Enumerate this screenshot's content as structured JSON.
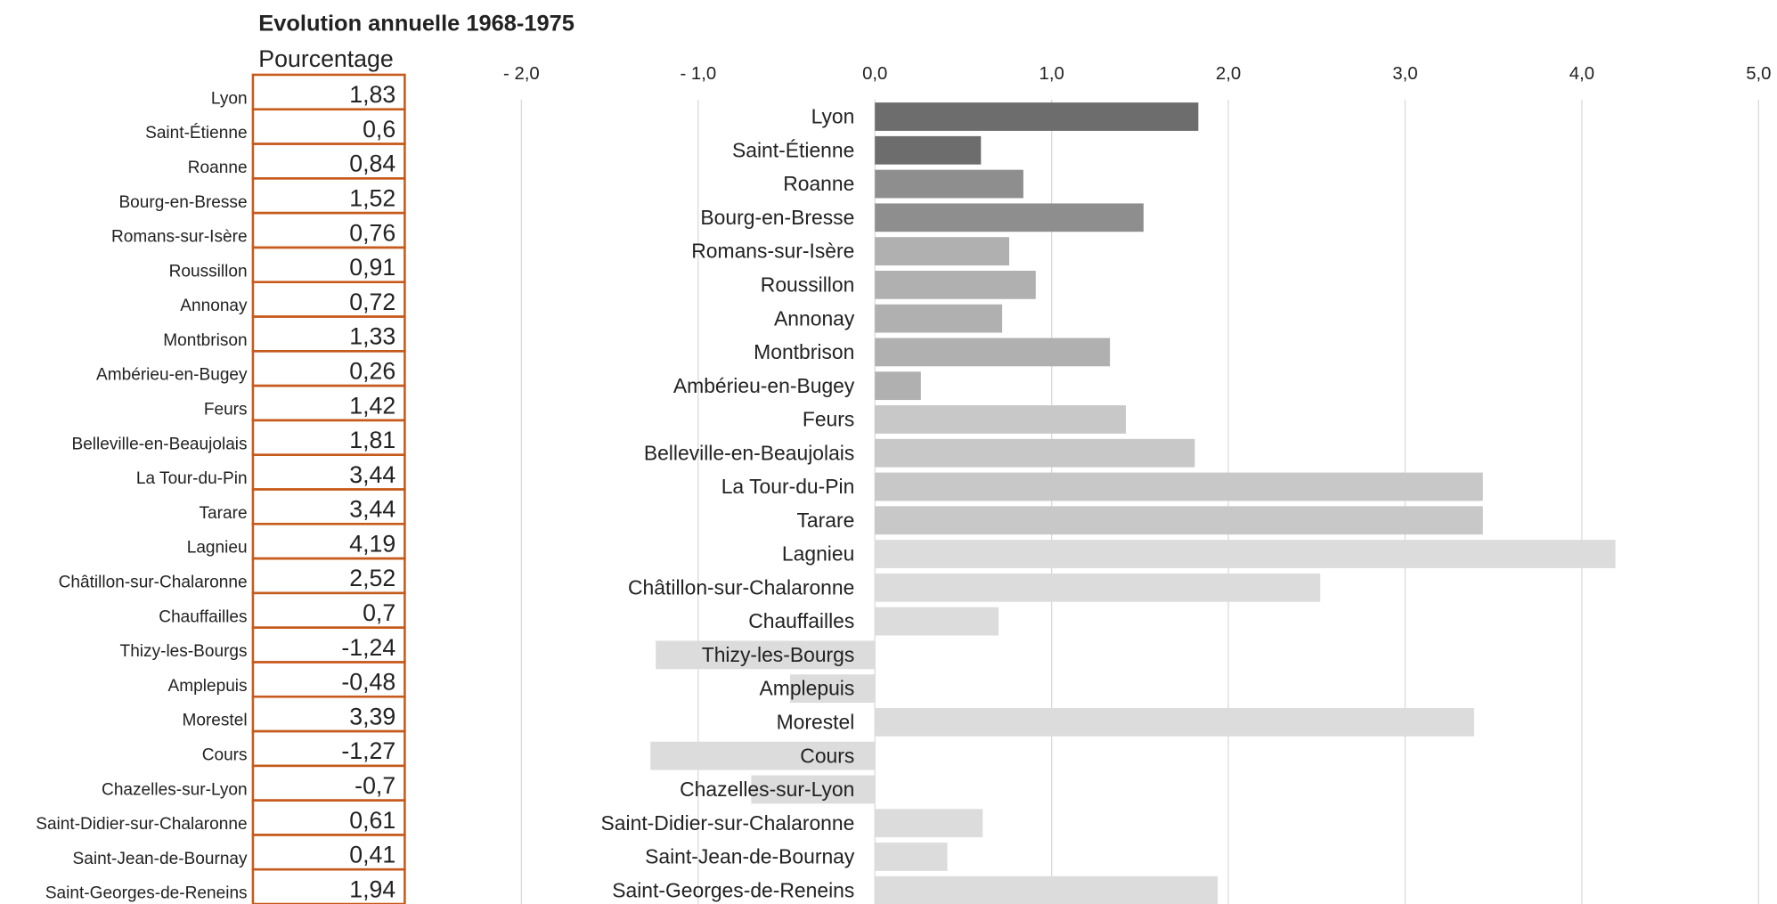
{
  "chart_data": {
    "type": "bar",
    "orientation": "horizontal",
    "title": "Evolution annuelle 1968-1975",
    "subtitle": "Pourcentage",
    "categories": [
      "Lyon",
      "Saint-Étienne",
      "Roanne",
      "Bourg-en-Bresse",
      "Romans-sur-Isère",
      "Roussillon",
      "Annonay",
      "Montbrison",
      "Ambérieu-en-Bugey",
      "Feurs",
      "Belleville-en-Beaujolais",
      "La Tour-du-Pin",
      "Tarare",
      "Lagnieu",
      "Châtillon-sur-Chalaronne",
      "Chauffailles",
      "Thizy-les-Bourgs",
      "Amplepuis",
      "Morestel",
      "Cours",
      "Chazelles-sur-Lyon",
      "Saint-Didier-sur-Chalaronne",
      "Saint-Jean-de-Bournay",
      "Saint-Georges-de-Reneins"
    ],
    "values": [
      1.83,
      0.6,
      0.84,
      1.52,
      0.76,
      0.91,
      0.72,
      1.33,
      0.26,
      1.42,
      1.81,
      3.44,
      3.44,
      4.19,
      2.52,
      0.7,
      -1.24,
      -0.48,
      3.39,
      -1.27,
      -0.7,
      0.61,
      0.41,
      1.94
    ],
    "value_labels": [
      "1,83",
      "0,6",
      "0,84",
      "1,52",
      "0,76",
      "0,91",
      "0,72",
      "1,33",
      "0,26",
      "1,42",
      "1,81",
      "3,44",
      "3,44",
      "4,19",
      "2,52",
      "0,7",
      "-1,24",
      "-0,48",
      "3,39",
      "-1,27",
      "-0,7",
      "0,61",
      "0,41",
      "1,94"
    ],
    "colors": [
      "#6e6d6d",
      "#6e6d6d",
      "#8e8e8e",
      "#8e8e8e",
      "#b0b0b0",
      "#b0b0b0",
      "#b0b0b0",
      "#b0b0b0",
      "#b0b0b0",
      "#c8c8c8",
      "#c8c8c8",
      "#c8c8c8",
      "#c8c8c8",
      "#dcdcdc",
      "#dcdcdc",
      "#dcdcdc",
      "#dcdcdc",
      "#dcdcdc",
      "#dcdcdc",
      "#dcdcdc",
      "#dcdcdc",
      "#dcdcdc",
      "#dcdcdc",
      "#dcdcdc"
    ],
    "xlim": [
      -2,
      5
    ],
    "xticks": [
      {
        "value": -2,
        "label": "- 2,0"
      },
      {
        "value": -1,
        "label": "- 1,0"
      },
      {
        "value": 0,
        "label": "0,0"
      },
      {
        "value": 1,
        "label": "1,0"
      },
      {
        "value": 2,
        "label": "2,0"
      },
      {
        "value": 3,
        "label": "3,0"
      },
      {
        "value": 4,
        "label": "4,0"
      },
      {
        "value": 5,
        "label": "5,0"
      }
    ],
    "grid": true
  }
}
